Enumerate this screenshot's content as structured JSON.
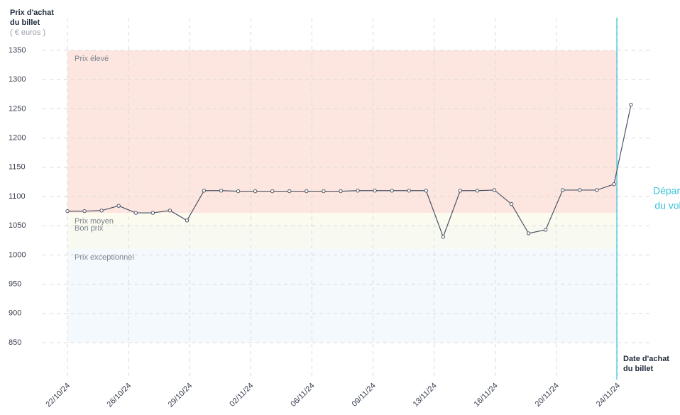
{
  "chart_data": {
    "type": "line",
    "y_label": [
      "Prix d'achat",
      "du billet",
      "( € euros )"
    ],
    "x_label": [
      "Date d'achat",
      "du billet"
    ],
    "annotation": [
      "Départ",
      "du vol"
    ],
    "x_tick_labels": [
      "22/10/24",
      "26/10/24",
      "29/10/24",
      "02/11/24",
      "06/11/24",
      "09/11/24",
      "13/11/24",
      "16/11/24",
      "20/11/24",
      "24/11/24"
    ],
    "values": [
      1075,
      1075,
      1076,
      1084,
      1072,
      1072,
      1076,
      1059,
      1110,
      1110,
      1109,
      1109,
      1109,
      1109,
      1109,
      1109,
      1109,
      1110,
      1110,
      1110,
      1110,
      1110,
      1031,
      1110,
      1110,
      1111,
      1087,
      1037,
      1043,
      1111,
      1111,
      1111,
      1121,
      1257
    ],
    "color": "#4a5466",
    "ylim": [
      850,
      1350
    ],
    "yticks": [
      850,
      900,
      950,
      1000,
      1050,
      1100,
      1150,
      1200,
      1250,
      1300,
      1350
    ],
    "zones": [
      {
        "label": "Prix élevé",
        "from": 1072,
        "to": 1350,
        "color": "#fde6df"
      },
      {
        "label": "Prix moyen",
        "from": 1050,
        "to": 1072,
        "color": "#fbfbef"
      },
      {
        "label": "Bon prix",
        "from": 1010,
        "to": 1050,
        "color": "#f8faf2"
      },
      {
        "label": "Prix exceptionnel",
        "from": 850,
        "to": 1010,
        "color": "#f3f9fd"
      }
    ],
    "departure_color": "#37c3dc",
    "grid": true
  }
}
